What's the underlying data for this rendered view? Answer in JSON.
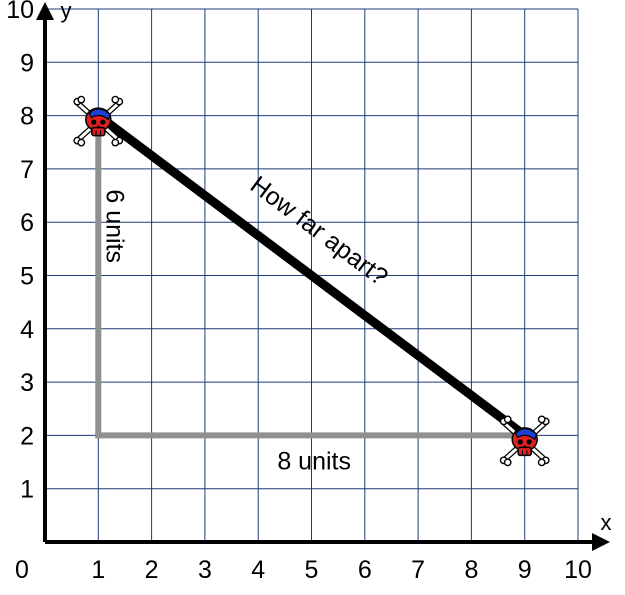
{
  "chart_data": {
    "type": "scatter",
    "title": "",
    "xlabel": "x",
    "ylabel": "y",
    "xlim": [
      0,
      10
    ],
    "ylim": [
      0,
      10
    ],
    "grid": true,
    "x_ticks": [
      "0",
      "1",
      "2",
      "3",
      "4",
      "5",
      "6",
      "7",
      "8",
      "9",
      "10"
    ],
    "y_ticks": [
      "1",
      "2",
      "3",
      "4",
      "5",
      "6",
      "7",
      "8",
      "9",
      "10"
    ],
    "points": [
      {
        "x": 1,
        "y": 8,
        "marker": "pirate-skull"
      },
      {
        "x": 9,
        "y": 2,
        "marker": "pirate-skull"
      }
    ],
    "legs": {
      "vertical": {
        "from": [
          1,
          8
        ],
        "to": [
          1,
          2
        ]
      },
      "horizontal": {
        "from": [
          1,
          2
        ],
        "to": [
          9,
          2
        ]
      }
    },
    "hypotenuse": {
      "from": [
        1,
        8
      ],
      "to": [
        9,
        2
      ]
    },
    "labels": {
      "vertical_leg": "6 units",
      "horizontal_leg": "8 units",
      "hypotenuse": "How far apart?"
    },
    "colors": {
      "grid": "#1f3a7a",
      "axis": "#000000",
      "leg": "#909090",
      "hypotenuse": "#000000",
      "skull": "#e02020",
      "bandana": "#1d3fd6"
    }
  }
}
